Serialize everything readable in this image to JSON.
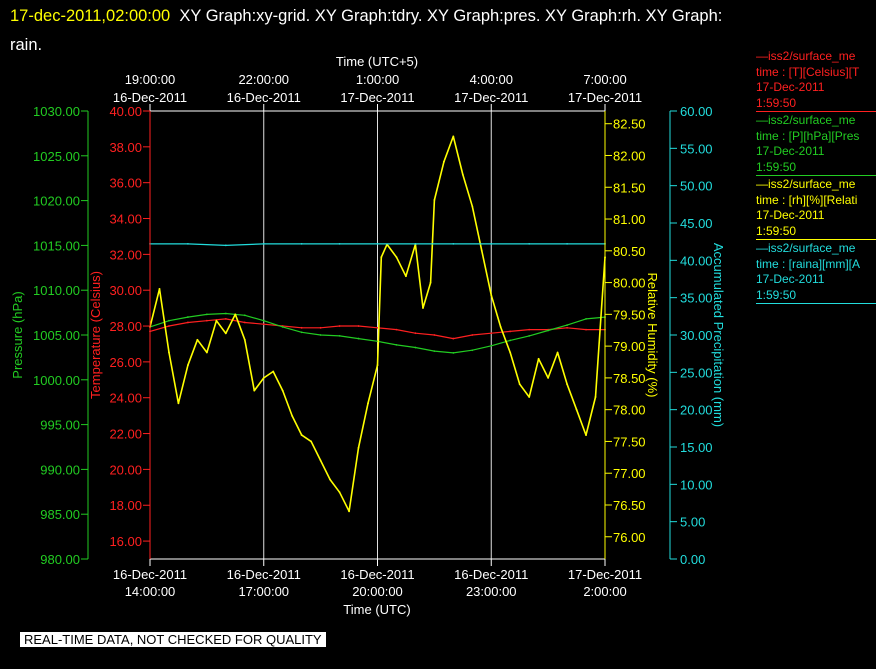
{
  "header": {
    "timestamp": "17-dec-2011,02:00:00",
    "titles": "XY Graph:xy-grid.  XY Graph:tdry.  XY Graph:pres.  XY Graph:rh.  XY Graph:",
    "titles_cont": "rain."
  },
  "banner": "REAL-TIME DATA, NOT CHECKED FOR QUALITY",
  "legend": [
    {
      "line1": "iss2/surface_me",
      "line2": "time : [T][Celsius][T",
      "line3": "17-Dec-2011",
      "line4": "1:59:50",
      "color": "#ff2020"
    },
    {
      "line1": "iss2/surface_me",
      "line2": "time : [P][hPa][Pres",
      "line3": "17-Dec-2011",
      "line4": "1:59:50",
      "color": "#22cc22"
    },
    {
      "line1": "iss2/surface_me",
      "line2": "time : [rh][%][Relati",
      "line3": "17-Dec-2011",
      "line4": "1:59:50",
      "color": "#ffff00"
    },
    {
      "line1": "iss2/surface_me",
      "line2": "time : [raina][mm][A",
      "line3": "17-Dec-2011",
      "line4": "1:59:50",
      "color": "#22dddd"
    }
  ],
  "chart_data": {
    "type": "line",
    "grid": true,
    "x_bottom": {
      "label": "Time (UTC)",
      "ticks": [
        {
          "date": "16-Dec-2011",
          "time": "14:00:00",
          "hour": 14
        },
        {
          "date": "16-Dec-2011",
          "time": "17:00:00",
          "hour": 17
        },
        {
          "date": "16-Dec-2011",
          "time": "20:00:00",
          "hour": 20
        },
        {
          "date": "16-Dec-2011",
          "time": "23:00:00",
          "hour": 23
        },
        {
          "date": "17-Dec-2011",
          "time": "2:00:00",
          "hour": 26
        }
      ],
      "range_hours": [
        14,
        26
      ]
    },
    "x_top": {
      "label": "Time (UTC+5)",
      "ticks": [
        {
          "time": "19:00:00",
          "date": "16-Dec-2011",
          "hour": 14
        },
        {
          "time": "22:00:00",
          "date": "16-Dec-2011",
          "hour": 17
        },
        {
          "time": "1:00:00",
          "date": "17-Dec-2011",
          "hour": 20
        },
        {
          "time": "4:00:00",
          "date": "17-Dec-2011",
          "hour": 23
        },
        {
          "time": "7:00:00",
          "date": "17-Dec-2011",
          "hour": 26
        }
      ]
    },
    "axes": {
      "pressure": {
        "label": "Pressure (hPa)",
        "color": "#22cc22",
        "min": 980,
        "max": 1030,
        "ticks": [
          "1030.00",
          "1025.00",
          "1020.00",
          "1015.00",
          "1010.00",
          "1005.00",
          "1000.00",
          "995.00",
          "990.00",
          "985.00",
          "980.00"
        ]
      },
      "temperature": {
        "label": "Temperature (Celsius)",
        "color": "#ff2020",
        "min": 15,
        "max": 40,
        "ticks": [
          "40.00",
          "38.00",
          "36.00",
          "34.00",
          "32.00",
          "30.00",
          "28.00",
          "26.00",
          "24.00",
          "22.00",
          "20.00",
          "18.00",
          "16.00"
        ]
      },
      "rh": {
        "label": "Relative Humidity (%)",
        "color": "#ffff00",
        "min": 75.65,
        "max": 82.7,
        "ticks": [
          "82.50",
          "82.00",
          "81.50",
          "81.00",
          "80.50",
          "80.00",
          "79.50",
          "79.00",
          "78.50",
          "78.00",
          "77.50",
          "77.00",
          "76.50",
          "76.00"
        ]
      },
      "precip": {
        "label": "Accumulated Precipitation (mm)",
        "color": "#22dddd",
        "min": 0,
        "max": 60,
        "ticks": [
          "60.00",
          "55.00",
          "50.00",
          "45.00",
          "40.00",
          "35.00",
          "30.00",
          "25.00",
          "20.00",
          "15.00",
          "10.00",
          "5.00",
          "0.00"
        ]
      }
    },
    "series": [
      {
        "name": "iss2/surface_me time : [T][Celsius]",
        "axis": "temperature",
        "color": "#ff2020",
        "x": [
          14,
          14.5,
          15,
          15.5,
          16,
          16.5,
          17,
          17.5,
          18,
          18.5,
          19,
          19.5,
          20,
          20.5,
          21,
          21.5,
          22,
          22.5,
          23,
          23.5,
          24,
          24.5,
          25,
          25.5,
          26
        ],
        "y": [
          27.7,
          28.0,
          28.2,
          28.3,
          28.4,
          28.2,
          28.1,
          28.0,
          27.9,
          27.9,
          28.0,
          28.0,
          27.9,
          27.8,
          27.6,
          27.5,
          27.3,
          27.5,
          27.6,
          27.7,
          27.8,
          27.8,
          27.9,
          27.8,
          27.8
        ]
      },
      {
        "name": "iss2/surface_me time : [P][hPa]",
        "axis": "pressure",
        "color": "#22cc22",
        "x": [
          14,
          14.5,
          15,
          15.5,
          16,
          16.5,
          17,
          17.5,
          18,
          18.5,
          19,
          19.5,
          20,
          20.5,
          21,
          21.5,
          22,
          22.5,
          23,
          23.5,
          24,
          24.5,
          25,
          25.5,
          26
        ],
        "y": [
          1005.9,
          1006.6,
          1007.0,
          1007.3,
          1007.4,
          1007.2,
          1006.6,
          1005.9,
          1005.3,
          1005.0,
          1004.9,
          1004.6,
          1004.3,
          1003.9,
          1003.6,
          1003.2,
          1003.0,
          1003.3,
          1003.8,
          1004.4,
          1004.9,
          1005.5,
          1006.1,
          1006.8,
          1007.0
        ]
      },
      {
        "name": "iss2/surface_me time : [rh][%]",
        "axis": "rh",
        "color": "#ffff00",
        "x": [
          14,
          14.25,
          14.5,
          14.75,
          15,
          15.25,
          15.5,
          15.75,
          16,
          16.25,
          16.5,
          16.75,
          17,
          17.25,
          17.5,
          17.75,
          18,
          18.25,
          18.5,
          18.75,
          19,
          19.25,
          19.5,
          19.75,
          20,
          20.1,
          20.25,
          20.5,
          20.75,
          21,
          21.2,
          21.4,
          21.5,
          21.75,
          22,
          22.25,
          22.5,
          22.75,
          23,
          23.25,
          23.5,
          23.75,
          24,
          24.25,
          24.5,
          24.75,
          25,
          25.25,
          25.5,
          25.75,
          26
        ],
        "y": [
          79.3,
          79.9,
          78.9,
          78.1,
          78.7,
          79.1,
          78.9,
          79.4,
          79.2,
          79.5,
          79.1,
          78.3,
          78.5,
          78.6,
          78.3,
          77.9,
          77.6,
          77.5,
          77.2,
          76.9,
          76.7,
          76.4,
          77.4,
          78.1,
          78.7,
          80.4,
          80.6,
          80.4,
          80.1,
          80.6,
          79.6,
          80.0,
          81.3,
          81.9,
          82.3,
          81.7,
          81.2,
          80.5,
          79.8,
          79.3,
          78.9,
          78.4,
          78.2,
          78.8,
          78.5,
          78.9,
          78.4,
          78.0,
          77.6,
          78.2,
          80.4
        ]
      },
      {
        "name": "iss2/surface_me time : [raina][mm]",
        "axis": "precip",
        "color": "#22dddd",
        "x": [
          14,
          15,
          16,
          17,
          18,
          19,
          20,
          21,
          22,
          23,
          24,
          25,
          26
        ],
        "y": [
          42.2,
          42.2,
          42.0,
          42.2,
          42.2,
          42.2,
          42.2,
          42.2,
          42.2,
          42.2,
          42.2,
          42.2,
          42.2
        ]
      }
    ]
  }
}
